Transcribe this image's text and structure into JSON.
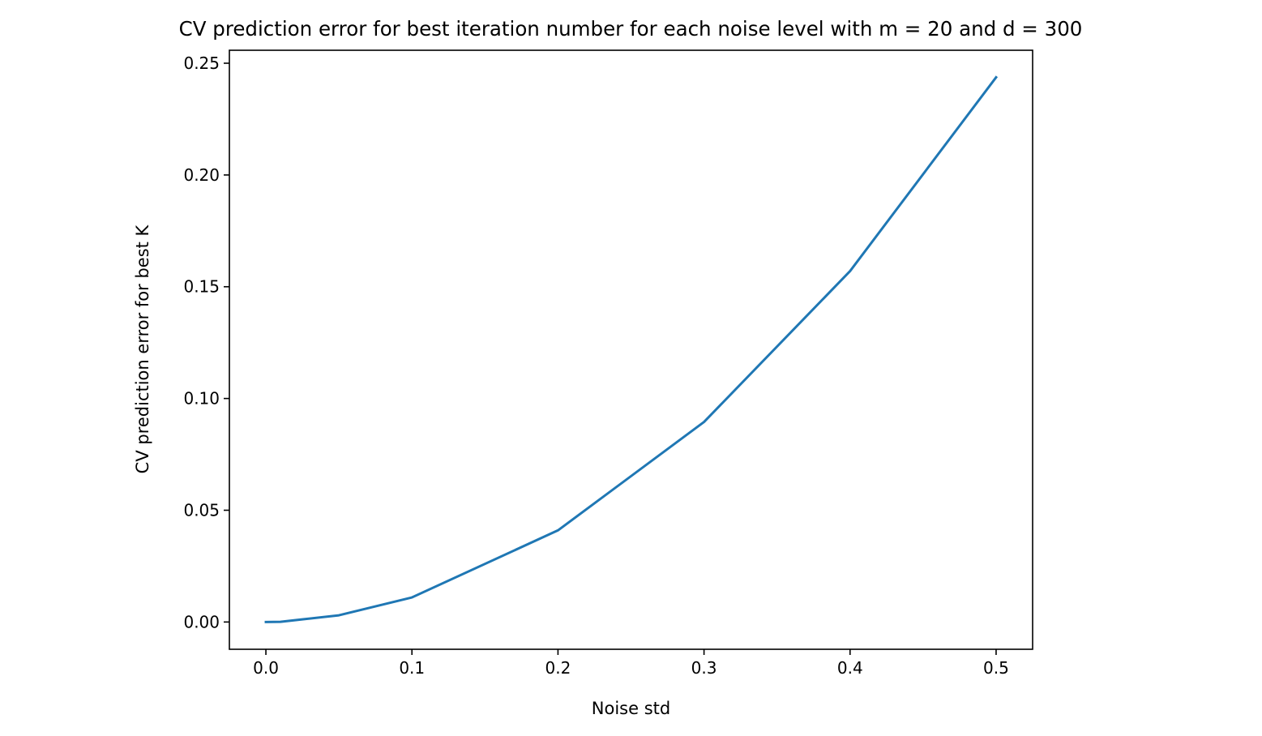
{
  "chart_data": {
    "type": "line",
    "title": "CV prediction error for best iteration number for each noise level with m = 20 and d = 300",
    "xlabel": "Noise std",
    "ylabel": "CV prediction error for best K",
    "xlim": [
      -0.025,
      0.525
    ],
    "ylim": [
      -0.0122,
      0.2558
    ],
    "xticks": [
      0.0,
      0.1,
      0.2,
      0.3,
      0.4,
      0.5
    ],
    "xtick_labels": [
      "0.0",
      "0.1",
      "0.2",
      "0.3",
      "0.4",
      "0.5"
    ],
    "yticks": [
      0.0,
      0.05,
      0.1,
      0.15,
      0.2,
      0.25
    ],
    "ytick_labels": [
      "0.00",
      "0.05",
      "0.10",
      "0.15",
      "0.20",
      "0.25"
    ],
    "grid": false,
    "series": [
      {
        "color": "#1f77b4",
        "x": [
          0.0,
          0.01,
          0.05,
          0.1,
          0.2,
          0.3,
          0.4,
          0.5
        ],
        "y": [
          0.0,
          0.0001,
          0.003,
          0.011,
          0.041,
          0.0895,
          0.157,
          0.2437
        ]
      }
    ]
  }
}
